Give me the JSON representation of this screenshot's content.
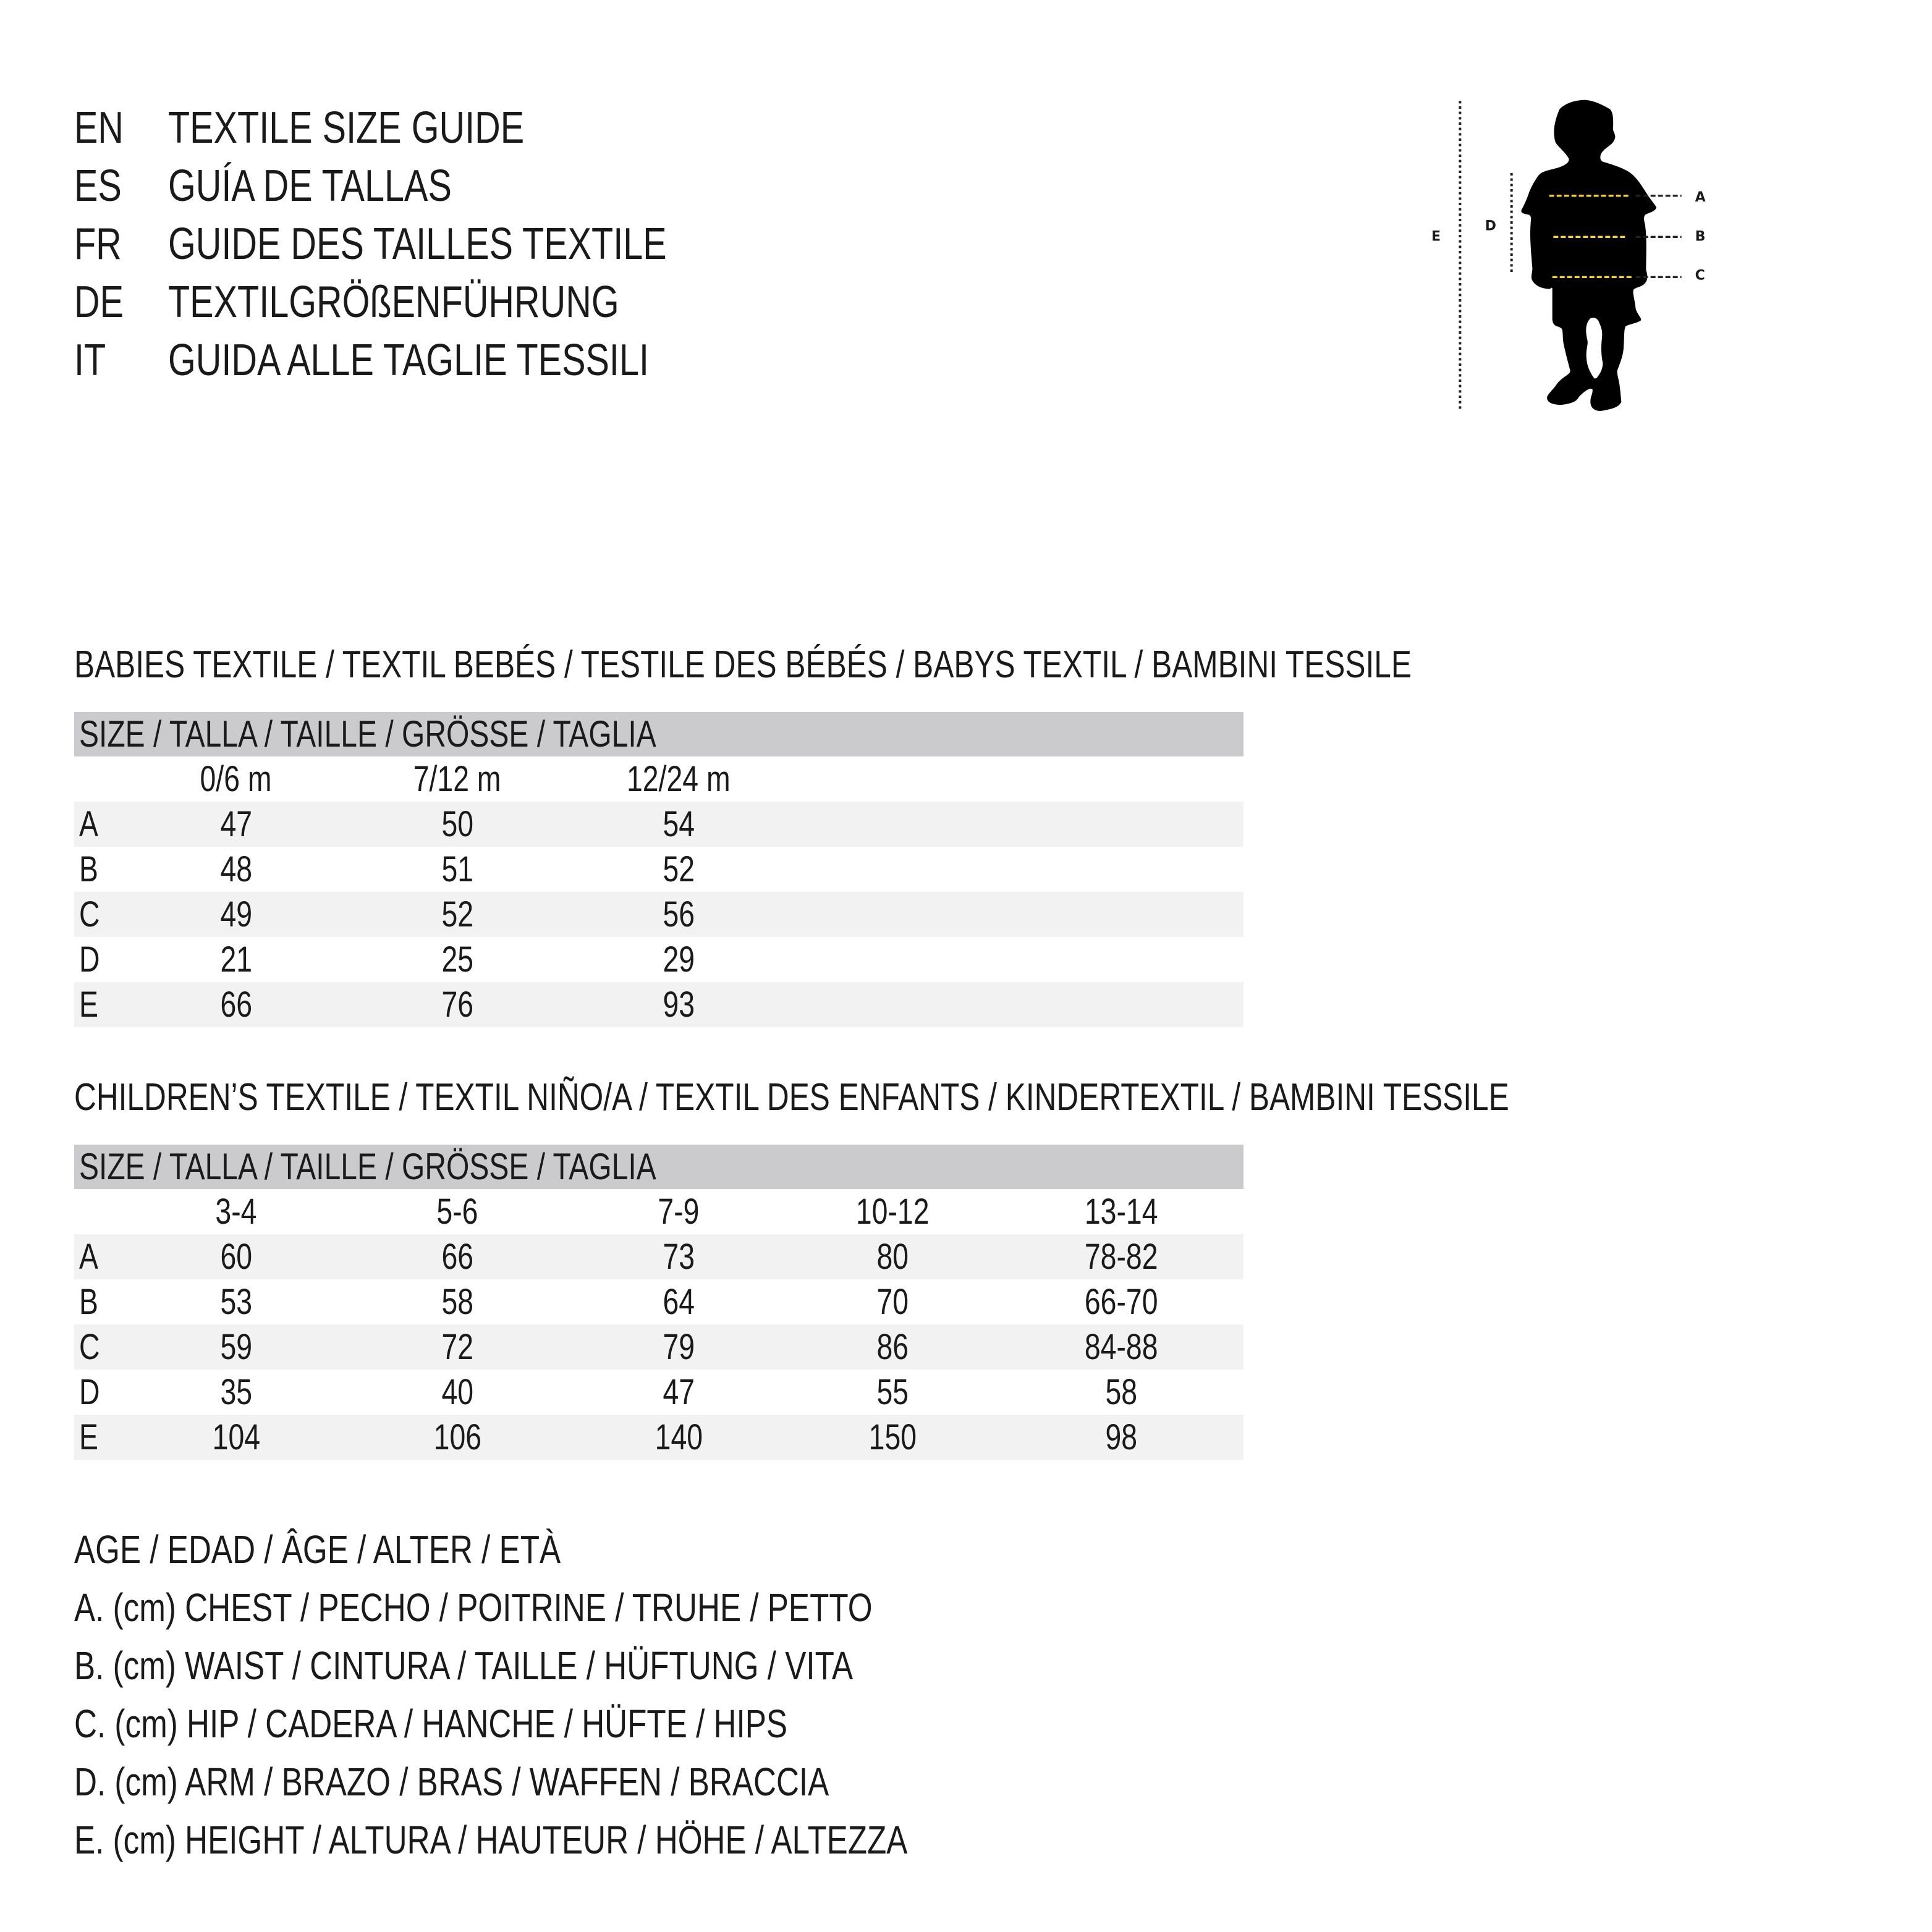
{
  "titles": [
    {
      "code": "EN",
      "text": "TEXTILE SIZE GUIDE"
    },
    {
      "code": "ES",
      "text": "GUÍA DE TALLAS"
    },
    {
      "code": "FR",
      "text": "GUIDE DES TAILLES TEXTILE"
    },
    {
      "code": "DE",
      "text": "TEXTILGRÖßENFÜHRUNG"
    },
    {
      "code": "IT",
      "text": "GUIDA ALLE TAGLIE TESSILI"
    }
  ],
  "babies": {
    "heading": "BABIES TEXTILE / TEXTIL BEBÉS / TESTILE DES BÉBÉS / BABYS TEXTIL / BAMBINI TESSILE",
    "size_label": "SIZE / TALLA / TAILLE / GRÖSSE / TAGLIA",
    "columns": [
      "0/6 m",
      "7/12 m",
      "12/24 m"
    ],
    "rows": [
      {
        "label": "A",
        "values": [
          "47",
          "50",
          "54"
        ]
      },
      {
        "label": "B",
        "values": [
          "48",
          "51",
          "52"
        ]
      },
      {
        "label": "C",
        "values": [
          "49",
          "52",
          "56"
        ]
      },
      {
        "label": "D",
        "values": [
          "21",
          "25",
          "29"
        ]
      },
      {
        "label": "E",
        "values": [
          "66",
          "76",
          "93"
        ]
      }
    ]
  },
  "children": {
    "heading": "CHILDREN’S TEXTILE / TEXTIL NIÑO/A / TEXTIL DES ENFANTS / KINDERTEXTIL / BAMBINI TESSILE",
    "size_label": "SIZE / TALLA / TAILLE / GRÖSSE / TAGLIA",
    "columns": [
      "3-4",
      "5-6",
      "7-9",
      "10-12",
      "13-14"
    ],
    "rows": [
      {
        "label": "A",
        "values": [
          "60",
          "66",
          "73",
          "80",
          "78-82"
        ]
      },
      {
        "label": "B",
        "values": [
          "53",
          "58",
          "64",
          "70",
          "66-70"
        ]
      },
      {
        "label": "C",
        "values": [
          "59",
          "72",
          "79",
          "86",
          "84-88"
        ]
      },
      {
        "label": "D",
        "values": [
          "35",
          "40",
          "47",
          "55",
          "58"
        ]
      },
      {
        "label": "E",
        "values": [
          "104",
          "106",
          "140",
          "150",
          "98"
        ]
      }
    ]
  },
  "legend": [
    "AGE / EDAD / ÂGE / ALTER / ETÀ",
    "A. (cm) CHEST / PECHO / POITRINE / TRUHE / PETTO",
    "B. (cm) WAIST / CINTURA / TAILLE / HÜFTUNG / VITA",
    "C. (cm) HIP / CADERA / HANCHE / HÜFTE / HIPS",
    "D. (cm) ARM / BRAZO / BRAS / WAFFEN / BRACCIA",
    "E. (cm) HEIGHT / ALTURA / HAUTEUR / HÖHE / ALTEZZA"
  ],
  "figure": {
    "labels": {
      "A": "A",
      "B": "B",
      "C": "C",
      "D": "D",
      "E": "E"
    },
    "icon": "child-silhouette-icon",
    "measure_color": "#f2d33a",
    "line_color": "#222222"
  }
}
